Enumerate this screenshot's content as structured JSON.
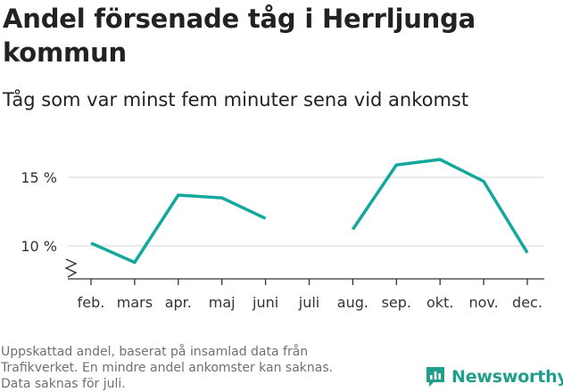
{
  "header": {
    "title": "Andel försenade tåg i Herrljunga kommun",
    "subtitle": "Tåg som var minst fem minuter sena vid ankomst"
  },
  "footnote": {
    "lines": [
      "Uppskattad andel, baserat på insamlad data från",
      "Trafikverket. En mindre andel ankomster kan saknas.",
      "Data saknas för juli."
    ]
  },
  "brand": {
    "name": "Newsworthy"
  },
  "colors": {
    "line": "#13a89e",
    "grid": "#dddddd",
    "brand": "#1f9e8c"
  },
  "chart_data": {
    "type": "line",
    "categories": [
      "feb.",
      "mars",
      "apr.",
      "maj",
      "juni",
      "juli",
      "aug.",
      "sep.",
      "okt.",
      "nov.",
      "dec."
    ],
    "series": [
      {
        "values": [
          10.2,
          8.8,
          13.7,
          13.5,
          12.0,
          null,
          11.2,
          15.9,
          16.3,
          14.7,
          9.5
        ]
      }
    ],
    "ylim": [
      7.5,
      17
    ],
    "yticks": [
      10,
      15
    ],
    "ytick_labels": [
      "10 %",
      "15 %"
    ],
    "y_axis_break": true,
    "grid": true,
    "legend": "none"
  }
}
